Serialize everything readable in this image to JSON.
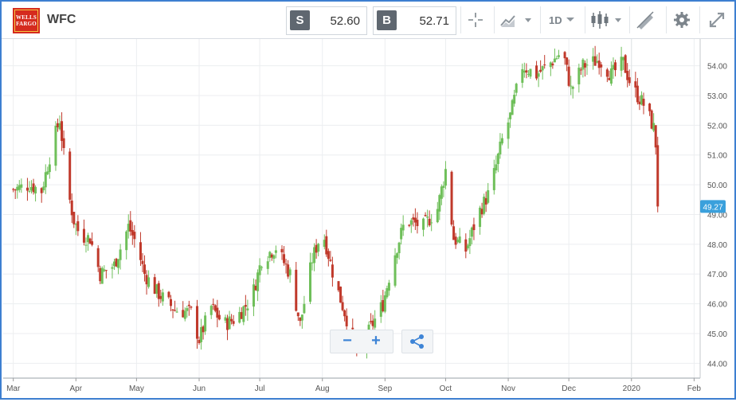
{
  "header": {
    "logo_text_line1": "WELLS",
    "logo_text_line2": "FARGO",
    "symbol": "WFC",
    "sell_label": "S",
    "sell_price": "52.60",
    "buy_label": "B",
    "buy_price": "52.71",
    "interval_label": "1D",
    "icons": [
      "crosshair-icon",
      "chart-type-icon",
      "candlestick-icon",
      "draw-icon",
      "gear-icon",
      "expand-icon"
    ]
  },
  "colors": {
    "up": "#6fbf5a",
    "down": "#c0392b",
    "price_badge": "#3aa0dc",
    "frame": "#3d7fd0"
  },
  "chart_data": {
    "type": "candlestick",
    "title": "",
    "ylim": [
      43.5,
      54.9
    ],
    "y_ticks": [
      "44.00",
      "45.00",
      "46.00",
      "47.00",
      "48.00",
      "49.00",
      "50.00",
      "51.00",
      "52.00",
      "53.00",
      "54.00"
    ],
    "x_ticks": [
      {
        "label": "Mar",
        "day": 0
      },
      {
        "label": "Apr",
        "day": 31
      },
      {
        "label": "May",
        "day": 61
      },
      {
        "label": "Jun",
        "day": 92
      },
      {
        "label": "Jul",
        "day": 122
      },
      {
        "label": "Aug",
        "day": 153
      },
      {
        "label": "Sep",
        "day": 184
      },
      {
        "label": "Oct",
        "day": 214
      },
      {
        "label": "Nov",
        "day": 245
      },
      {
        "label": "Dec",
        "day": 275
      },
      {
        "label": "2020",
        "day": 306
      },
      {
        "label": "Feb",
        "day": 337
      }
    ],
    "x_range_days": [
      -5,
      340
    ],
    "last_price": "49.27",
    "anchors": [
      {
        "day": -2,
        "p": 49.8
      },
      {
        "day": 8,
        "p": 50.0
      },
      {
        "day": 14,
        "p": 49.8
      },
      {
        "day": 20,
        "p": 51.5
      },
      {
        "day": 23,
        "p": 52.2
      },
      {
        "day": 27,
        "p": 49.8
      },
      {
        "day": 30,
        "p": 48.8
      },
      {
        "day": 33,
        "p": 48.3
      },
      {
        "day": 38,
        "p": 48.2
      },
      {
        "day": 43,
        "p": 47.0
      },
      {
        "day": 50,
        "p": 47.3
      },
      {
        "day": 57,
        "p": 48.6
      },
      {
        "day": 61,
        "p": 48.0
      },
      {
        "day": 65,
        "p": 47.0
      },
      {
        "day": 71,
        "p": 46.4
      },
      {
        "day": 80,
        "p": 45.8
      },
      {
        "day": 88,
        "p": 45.7
      },
      {
        "day": 92,
        "p": 44.8
      },
      {
        "day": 98,
        "p": 45.9
      },
      {
        "day": 104,
        "p": 45.3
      },
      {
        "day": 110,
        "p": 45.5
      },
      {
        "day": 118,
        "p": 46.2
      },
      {
        "day": 123,
        "p": 47.5
      },
      {
        "day": 130,
        "p": 47.9
      },
      {
        "day": 137,
        "p": 47.0
      },
      {
        "day": 142,
        "p": 45.3
      },
      {
        "day": 148,
        "p": 47.5
      },
      {
        "day": 153,
        "p": 48.5
      },
      {
        "day": 159,
        "p": 46.8
      },
      {
        "day": 165,
        "p": 45.5
      },
      {
        "day": 171,
        "p": 44.3
      },
      {
        "day": 177,
        "p": 45.2
      },
      {
        "day": 183,
        "p": 46.0
      },
      {
        "day": 188,
        "p": 47.5
      },
      {
        "day": 194,
        "p": 48.8
      },
      {
        "day": 203,
        "p": 48.6
      },
      {
        "day": 210,
        "p": 49.2
      },
      {
        "day": 214,
        "p": 50.5
      },
      {
        "day": 218,
        "p": 48.2
      },
      {
        "day": 224,
        "p": 47.8
      },
      {
        "day": 230,
        "p": 49.0
      },
      {
        "day": 236,
        "p": 49.8
      },
      {
        "day": 242,
        "p": 51.5
      },
      {
        "day": 246,
        "p": 52.3
      },
      {
        "day": 252,
        "p": 54.0
      },
      {
        "day": 259,
        "p": 53.7
      },
      {
        "day": 266,
        "p": 54.1
      },
      {
        "day": 272,
        "p": 54.5
      },
      {
        "day": 276,
        "p": 53.2
      },
      {
        "day": 282,
        "p": 54.0
      },
      {
        "day": 290,
        "p": 54.2
      },
      {
        "day": 296,
        "p": 53.7
      },
      {
        "day": 302,
        "p": 54.1
      },
      {
        "day": 306,
        "p": 53.3
      },
      {
        "day": 313,
        "p": 52.6
      },
      {
        "day": 317,
        "p": 51.9
      },
      {
        "day": 320,
        "p": 50.3
      },
      {
        "day": 321,
        "p": 49.27
      }
    ]
  }
}
